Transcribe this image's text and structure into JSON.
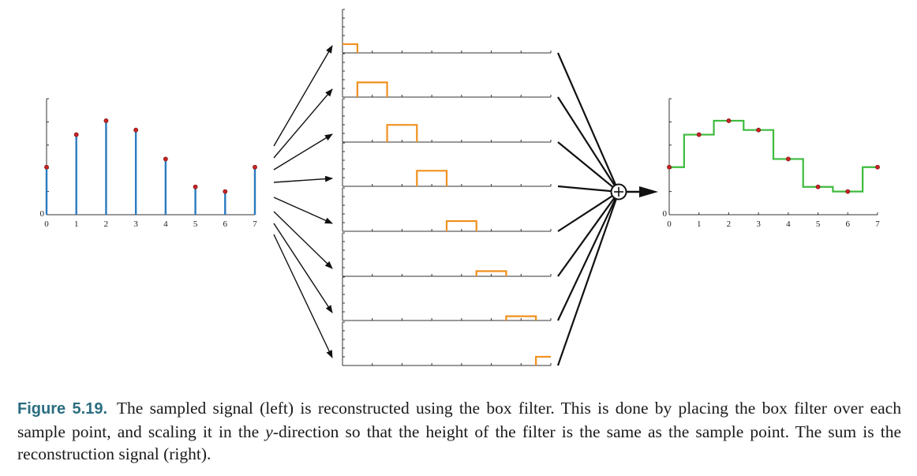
{
  "caption": {
    "label": "Figure 5.19.",
    "text_1": "The sampled signal (left) is reconstructed using the box filter. This is done by placing the box filter over each sample point, and scaling it in the ",
    "text_em": "y",
    "text_2": "-direction so that the height of the filter is the same as the sample point. The sum is the reconstruction signal (right)."
  },
  "chart_data": [
    {
      "type": "stem",
      "x": [
        0,
        1,
        2,
        3,
        4,
        5,
        6,
        7
      ],
      "values": [
        0.41,
        0.69,
        0.81,
        0.73,
        0.48,
        0.24,
        0.2,
        0.41
      ],
      "xticks": [
        "0",
        "1",
        "2",
        "3",
        "4",
        "5",
        "6",
        "7"
      ],
      "ylabel_zero": "0",
      "xlim": [
        0,
        7
      ],
      "ylim": [
        0,
        1
      ],
      "color": "#2a7bbf",
      "marker_color": "#cc2222"
    },
    {
      "type": "line",
      "subtype": "box filter kernels (8 panels)",
      "panels": [
        {
          "center": 0,
          "height": 0.41
        },
        {
          "center": 1,
          "height": 0.69
        },
        {
          "center": 2,
          "height": 0.81
        },
        {
          "center": 3,
          "height": 0.73
        },
        {
          "center": 4,
          "height": 0.48
        },
        {
          "center": 5,
          "height": 0.24
        },
        {
          "center": 6,
          "height": 0.2
        },
        {
          "center": 7,
          "height": 0.41
        }
      ],
      "box_width": 1,
      "xlim": [
        0,
        7
      ],
      "color": "#f0901e"
    },
    {
      "type": "line",
      "subtype": "step reconstruction",
      "x": [
        0,
        1,
        2,
        3,
        4,
        5,
        6,
        7
      ],
      "values": [
        0.41,
        0.69,
        0.81,
        0.73,
        0.48,
        0.24,
        0.2,
        0.41
      ],
      "xticks": [
        "0",
        "1",
        "2",
        "3",
        "4",
        "5",
        "6",
        "7"
      ],
      "ylabel_zero": "0",
      "xlim": [
        0,
        7
      ],
      "ylim": [
        0,
        1
      ],
      "color": "#3dbb3d",
      "marker_color": "#cc2222"
    }
  ]
}
